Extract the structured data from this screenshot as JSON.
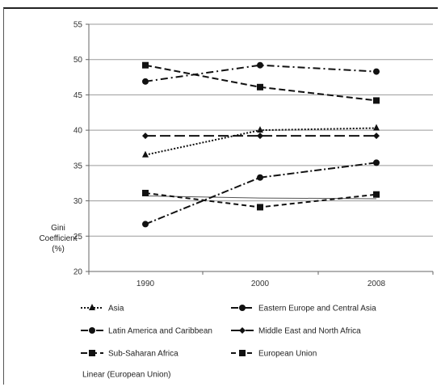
{
  "chart_data": {
    "type": "line",
    "x": [
      "1990",
      "2000",
      "2008"
    ],
    "ylim": [
      20,
      55
    ],
    "yticks": [
      20,
      25,
      30,
      35,
      40,
      45,
      50,
      55
    ],
    "ylabel_lines": [
      "Gini",
      "Coefficient",
      "(%)"
    ],
    "grid": true,
    "legend_position": "bottom",
    "series": [
      {
        "name": "Asia",
        "values": [
          36.5,
          40.0,
          40.3
        ],
        "dash": "2,2",
        "marker": "triangle",
        "color": "#111111"
      },
      {
        "name": "Eastern Europe and Central Asia",
        "values": [
          26.7,
          33.3,
          35.4
        ],
        "dash": "9,3,2,3",
        "marker": "circle",
        "color": "#111111"
      },
      {
        "name": "Latin America and Caribbean",
        "values": [
          46.9,
          49.2,
          48.3
        ],
        "dash": "9,4,2,4",
        "marker": "circle",
        "color": "#111111"
      },
      {
        "name": "Middle East and North Africa",
        "values": [
          39.2,
          39.2,
          39.2
        ],
        "dash": "13,5",
        "marker": "diamond",
        "color": "#111111"
      },
      {
        "name": "Sub-Saharan Africa",
        "values": [
          49.2,
          46.1,
          44.2
        ],
        "dash": "8,4",
        "marker": "square",
        "color": "#111111"
      },
      {
        "name": "European Union",
        "values": [
          31.1,
          29.1,
          30.9
        ],
        "dash": "6,4",
        "marker": "square",
        "color": "#111111"
      }
    ],
    "trendline": {
      "name": "Linear (European Union)",
      "values": [
        30.7,
        30.4,
        30.3
      ],
      "color": "#555555"
    }
  }
}
